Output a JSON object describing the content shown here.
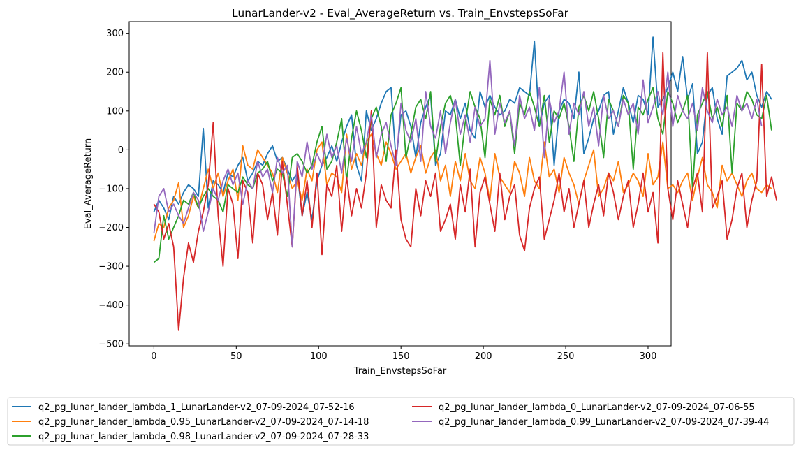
{
  "chart_data": {
    "type": "line",
    "title": "LunarLander-v2 - Eval_AverageReturn vs. Train_EnvstepsSoFar",
    "xlabel": "Train_EnvstepsSoFar",
    "ylabel": "Eval_AverageReturn",
    "xlim": [
      -15,
      314
    ],
    "ylim": [
      -505,
      330
    ],
    "xticks": [
      0,
      50,
      100,
      150,
      200,
      250,
      300
    ],
    "yticks": [
      -500,
      -400,
      -300,
      -200,
      -100,
      0,
      100,
      200,
      300
    ],
    "grid": false,
    "legend_position": "below-plot",
    "x_step": 3,
    "series": [
      {
        "name": "q2_pg_lunar_lander_lambda_1_LunarLander-v2_07-09-2024_07-52-16",
        "color": "#1f77b4",
        "values": [
          -160,
          -130,
          -150,
          -180,
          -120,
          -140,
          -110,
          -90,
          -100,
          -120,
          55,
          -150,
          -80,
          -90,
          -110,
          -60,
          -70,
          -40,
          -20,
          -80,
          -60,
          -30,
          -40,
          -10,
          10,
          -30,
          -20,
          -50,
          -80,
          -60,
          -170,
          -110,
          -180,
          -80,
          -40,
          -20,
          10,
          -30,
          20,
          60,
          90,
          -40,
          -80,
          100,
          50,
          80,
          120,
          150,
          160,
          -30,
          90,
          100,
          60,
          -20,
          70,
          110,
          140,
          -40,
          -10,
          100,
          90,
          130,
          80,
          120,
          50,
          30,
          150,
          110,
          140,
          110,
          90,
          100,
          130,
          120,
          160,
          150,
          140,
          280,
          60,
          120,
          140,
          -40,
          100,
          130,
          120,
          80,
          200,
          -10,
          30,
          80,
          100,
          140,
          150,
          40,
          100,
          160,
          120,
          70,
          140,
          130,
          90,
          290,
          110,
          130,
          160,
          200,
          150,
          240,
          130,
          170,
          -10,
          20,
          140,
          160,
          80,
          40,
          190,
          200,
          210,
          230,
          180,
          200,
          140,
          110,
          150,
          130
        ]
      },
      {
        "name": "q2_pg_lunar_lander_lambda_0.95_LunarLander-v2_07-09-2024_07-14-18",
        "color": "#ff7f0e",
        "values": [
          -235,
          -190,
          -200,
          -150,
          -130,
          -85,
          -200,
          -170,
          -120,
          -150,
          -100,
          -50,
          -100,
          -60,
          -120,
          -80,
          -50,
          -130,
          10,
          -40,
          -50,
          0,
          -20,
          -40,
          -60,
          -110,
          -20,
          -60,
          -100,
          -80,
          -130,
          -50,
          -80,
          0,
          20,
          -90,
          -60,
          -70,
          -110,
          40,
          -50,
          -10,
          -40,
          20,
          40,
          -10,
          -40,
          20,
          -10,
          -50,
          -30,
          -10,
          -60,
          -20,
          10,
          -60,
          -20,
          0,
          -80,
          -40,
          -120,
          -30,
          -80,
          -10,
          -80,
          -100,
          -20,
          -60,
          -130,
          -10,
          -70,
          -90,
          -110,
          -30,
          -60,
          -120,
          -20,
          -80,
          -100,
          20,
          -70,
          -50,
          -110,
          -20,
          -60,
          -90,
          -140,
          -80,
          -40,
          0,
          -120,
          -100,
          -60,
          -80,
          -30,
          -110,
          -90,
          -60,
          -80,
          -120,
          -10,
          -90,
          -70,
          20,
          -100,
          -90,
          -110,
          -80,
          -60,
          -130,
          -70,
          -20,
          -90,
          -110,
          -150,
          -40,
          -80,
          -60,
          -90,
          -120,
          -80,
          -60,
          -100,
          -110,
          -90,
          -100
        ]
      },
      {
        "name": "q2_pg_lunar_lander_lambda_0.98_LunarLander-v2_07-09-2024_07-28-33",
        "color": "#2ca02c",
        "values": [
          -290,
          -280,
          -170,
          -230,
          -200,
          -170,
          -130,
          -140,
          -110,
          -150,
          -120,
          -100,
          -120,
          -130,
          -160,
          -90,
          -100,
          -110,
          -70,
          -90,
          -100,
          -60,
          -50,
          -30,
          -80,
          -50,
          -60,
          -120,
          -20,
          -10,
          -30,
          -60,
          -40,
          20,
          60,
          -50,
          -30,
          20,
          80,
          -80,
          30,
          100,
          50,
          -20,
          80,
          110,
          60,
          -30,
          90,
          120,
          160,
          -20,
          40,
          110,
          130,
          80,
          150,
          -30,
          60,
          120,
          140,
          90,
          -40,
          70,
          150,
          110,
          80,
          -20,
          130,
          90,
          140,
          60,
          100,
          -10,
          120,
          90,
          150,
          110,
          60,
          140,
          20,
          100,
          80,
          120,
          60,
          -30,
          110,
          140,
          100,
          150,
          80,
          -20,
          130,
          100,
          60,
          140,
          120,
          -50,
          110,
          90,
          130,
          160,
          80,
          40,
          150,
          120,
          70,
          100,
          140,
          -100,
          90,
          120,
          150,
          80,
          110,
          60,
          140,
          -60,
          120,
          100,
          150,
          130,
          90,
          80,
          140,
          50
        ]
      },
      {
        "name": "q2_pg_lunar_lander_lambda_0_LunarLander-v2_07-09-2024_07-06-55",
        "color": "#d62728",
        "values": [
          -140,
          -160,
          -230,
          -190,
          -250,
          -465,
          -330,
          -240,
          -290,
          -210,
          -160,
          -90,
          70,
          -170,
          -300,
          -100,
          -140,
          -280,
          -80,
          -110,
          -240,
          -60,
          -90,
          -180,
          -110,
          -220,
          -30,
          -140,
          -250,
          -40,
          -170,
          -80,
          -200,
          -60,
          -270,
          -90,
          -120,
          -40,
          -210,
          -70,
          -170,
          -100,
          -150,
          -60,
          100,
          -200,
          -90,
          -130,
          -150,
          0,
          -180,
          -230,
          -250,
          -100,
          -170,
          -80,
          -120,
          -60,
          -210,
          -180,
          -140,
          -230,
          -90,
          -160,
          -50,
          -250,
          -110,
          -70,
          -140,
          -210,
          -60,
          -180,
          -120,
          -90,
          -220,
          -260,
          -150,
          -100,
          -70,
          -230,
          -180,
          -130,
          -60,
          -160,
          -100,
          -200,
          -140,
          -80,
          -200,
          -140,
          -90,
          -170,
          -60,
          -110,
          -180,
          -120,
          -80,
          -200,
          -140,
          -60,
          -160,
          -110,
          -240,
          250,
          -100,
          -180,
          -80,
          -140,
          -200,
          -100,
          -60,
          -160,
          250,
          -150,
          -120,
          -80,
          -230,
          -180,
          -100,
          -60,
          -200,
          -130,
          -80,
          220,
          -120,
          -70,
          -130
        ]
      },
      {
        "name": "q2_pg_lunar_lander_lambda_0.99_LunarLander-v2_07-09-2024_07-39-44",
        "color": "#9467bd",
        "values": [
          -215,
          -120,
          -100,
          -160,
          -140,
          -170,
          -190,
          -150,
          -110,
          -130,
          -210,
          -160,
          -100,
          -130,
          -80,
          -50,
          -90,
          -60,
          -140,
          -80,
          -100,
          -30,
          -70,
          -50,
          -110,
          -20,
          -60,
          -40,
          -250,
          -30,
          -70,
          20,
          -50,
          -10,
          -40,
          40,
          -20,
          10,
          -60,
          30,
          -30,
          60,
          -10,
          20,
          90,
          -20,
          40,
          70,
          10,
          -40,
          120,
          50,
          20,
          80,
          -30,
          150,
          60,
          30,
          100,
          -10,
          70,
          130,
          40,
          90,
          20,
          110,
          60,
          80,
          230,
          40,
          120,
          70,
          100,
          10,
          140,
          80,
          110,
          50,
          160,
          -20,
          130,
          70,
          100,
          200,
          40,
          120,
          90,
          150,
          60,
          110,
          10,
          140,
          80,
          100,
          60,
          130,
          90,
          120,
          40,
          180,
          70,
          110,
          150,
          90,
          200,
          60,
          140,
          100,
          80,
          120,
          50,
          160,
          100,
          70,
          130,
          90,
          110,
          60,
          140,
          100,
          120,
          80,
          130,
          60
        ]
      }
    ]
  }
}
